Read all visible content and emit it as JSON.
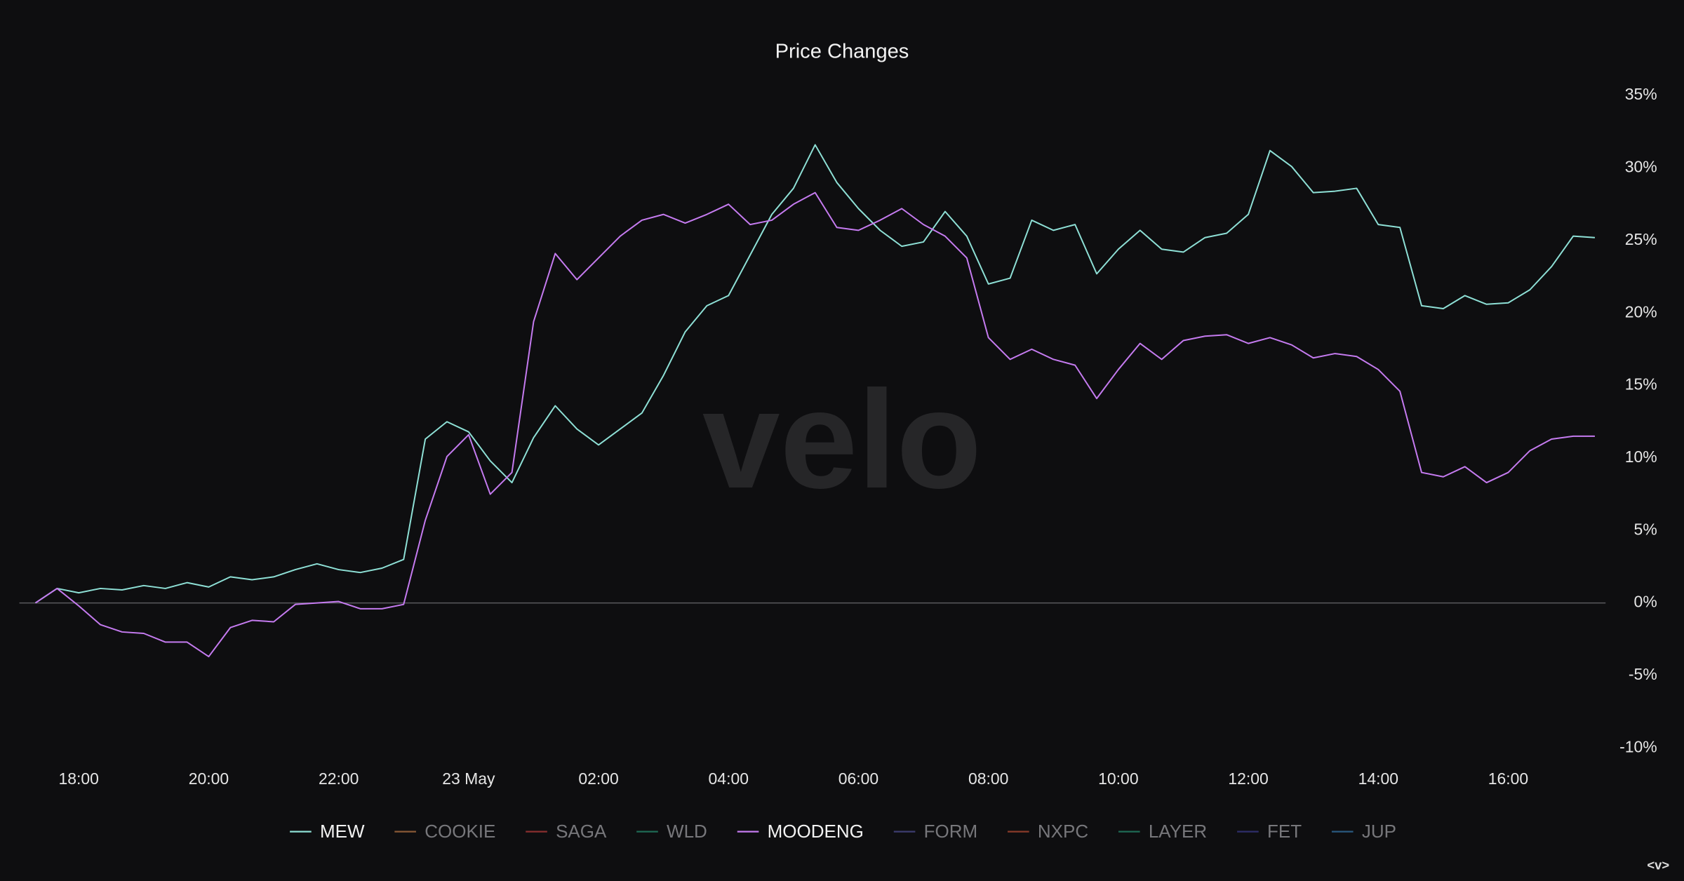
{
  "chart_data": {
    "type": "line",
    "title": "Price Changes",
    "watermark": "velo",
    "corner_label": "<v>",
    "x": [
      "17:20",
      "17:40",
      "18:00",
      "18:20",
      "18:40",
      "19:00",
      "19:20",
      "19:40",
      "20:00",
      "20:20",
      "20:40",
      "21:00",
      "21:20",
      "21:40",
      "22:00",
      "22:20",
      "22:40",
      "23:00",
      "23:20",
      "23:40",
      "00:00",
      "00:20",
      "00:40",
      "01:00",
      "01:20",
      "01:40",
      "02:00",
      "02:20",
      "02:40",
      "03:00",
      "03:20",
      "03:40",
      "04:00",
      "04:20",
      "04:40",
      "05:00",
      "05:20",
      "05:40",
      "06:00",
      "06:20",
      "06:40",
      "07:00",
      "07:20",
      "07:40",
      "08:00",
      "08:20",
      "08:40",
      "09:00",
      "09:20",
      "09:40",
      "10:00",
      "10:20",
      "10:40",
      "11:00",
      "11:20",
      "11:40",
      "12:00",
      "12:20",
      "12:40",
      "13:00",
      "13:20",
      "13:40",
      "14:00",
      "14:20",
      "14:40",
      "15:00",
      "15:20",
      "15:40",
      "16:00",
      "16:20",
      "16:40",
      "17:00",
      "17:20"
    ],
    "xticks": [
      "18:00",
      "20:00",
      "22:00",
      {
        "value": "00:00",
        "label": "23 May"
      },
      "02:00",
      "04:00",
      "06:00",
      "08:00",
      "10:00",
      "12:00",
      "14:00",
      "16:00"
    ],
    "ylim": [
      -10,
      35
    ],
    "yticks": [
      {
        "value": 35,
        "label": "35%"
      },
      {
        "value": 30,
        "label": "30%"
      },
      {
        "value": 25,
        "label": "25%"
      },
      {
        "value": 20,
        "label": "20%"
      },
      {
        "value": 15,
        "label": "15%"
      },
      {
        "value": 10,
        "label": "10%"
      },
      {
        "value": 5,
        "label": "5%"
      },
      {
        "value": 0,
        "label": "0%"
      },
      {
        "value": -5,
        "label": "-5%"
      },
      {
        "value": -10,
        "label": "-10%"
      }
    ],
    "zero_line": true,
    "legend": "bottom",
    "series": [
      {
        "name": "MEW",
        "color": "#8ee0d6",
        "visible": true,
        "values": [
          0,
          1.0,
          0.7,
          1.0,
          0.9,
          1.2,
          1.0,
          1.4,
          1.1,
          1.8,
          1.6,
          1.8,
          2.3,
          2.7,
          2.3,
          2.1,
          2.4,
          3.0,
          11.3,
          12.5,
          11.8,
          9.8,
          8.3,
          11.4,
          13.6,
          12.0,
          10.9,
          12.0,
          13.1,
          15.7,
          18.7,
          20.5,
          21.2,
          24.0,
          26.8,
          28.6,
          31.6,
          29.0,
          27.2,
          25.7,
          24.6,
          24.9,
          27.0,
          25.3,
          22.0,
          22.4,
          26.4,
          25.7,
          26.1,
          22.7,
          24.4,
          25.7,
          24.4,
          24.2,
          25.2,
          25.5,
          26.8,
          31.2,
          30.1,
          28.3,
          28.4,
          28.6,
          26.1,
          25.9,
          20.5,
          20.3,
          21.2,
          20.6,
          20.7,
          21.6,
          23.2,
          25.3,
          25.2
        ]
      },
      {
        "name": "COOKIE",
        "color": "#8a5a36",
        "visible": false
      },
      {
        "name": "SAGA",
        "color": "#8a2f2f",
        "visible": false
      },
      {
        "name": "WLD",
        "color": "#1f6b55",
        "visible": false
      },
      {
        "name": "MOODENG",
        "color": "#c57bf0",
        "visible": true,
        "values": [
          0,
          1.0,
          -0.2,
          -1.5,
          -2.0,
          -2.1,
          -2.7,
          -2.7,
          -3.7,
          -1.7,
          -1.2,
          -1.3,
          -0.1,
          0,
          0.1,
          -0.4,
          -0.4,
          -0.1,
          5.7,
          10.1,
          11.6,
          7.5,
          9.0,
          19.4,
          24.1,
          22.3,
          23.8,
          25.3,
          26.4,
          26.8,
          26.2,
          26.8,
          27.5,
          26.1,
          26.4,
          27.5,
          28.3,
          25.9,
          25.7,
          26.4,
          27.2,
          26.1,
          25.3,
          23.8,
          18.3,
          16.8,
          17.5,
          16.8,
          16.4,
          14.1,
          16.1,
          17.9,
          16.8,
          18.1,
          18.4,
          18.5,
          17.9,
          18.3,
          17.8,
          16.9,
          17.2,
          17.0,
          16.1,
          14.6,
          9.0,
          8.7,
          9.4,
          8.3,
          9.0,
          10.5,
          11.3,
          11.5,
          11.5
        ]
      },
      {
        "name": "FORM",
        "color": "#3d3d70",
        "visible": false
      },
      {
        "name": "NXPC",
        "color": "#8a3b2a",
        "visible": false
      },
      {
        "name": "LAYER",
        "color": "#1f6b55",
        "visible": false
      },
      {
        "name": "FET",
        "color": "#2e2e6b",
        "visible": false
      },
      {
        "name": "JUP",
        "color": "#2a5a80",
        "visible": false
      }
    ]
  }
}
